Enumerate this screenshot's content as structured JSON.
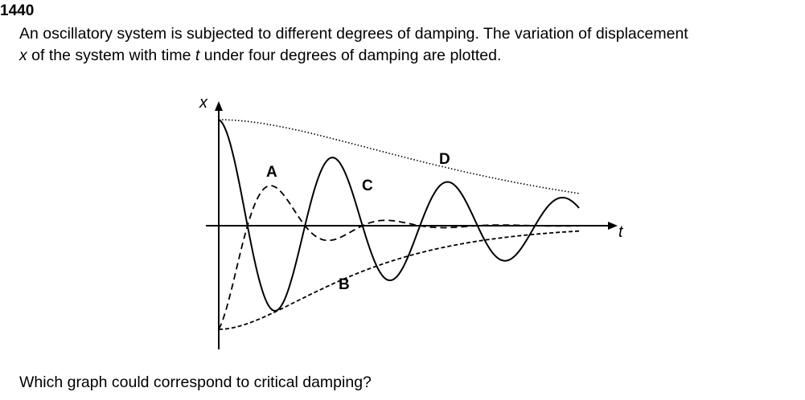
{
  "question": {
    "number": "1440",
    "stem_line1": "An oscillatory system is subjected to different degrees of damping. The variation of displacement",
    "stem_line2_var_x": "x",
    "stem_line2_a": " of the system with time ",
    "stem_line2_var_t": "t",
    "stem_line2_b": " under four degrees of damping are plotted.",
    "prompt": "Which graph could correspond to critical damping?"
  },
  "figure": {
    "y_axis_label": "x",
    "x_axis_label": "t",
    "curves": [
      {
        "label": "A",
        "style": "dashed",
        "behaviour": "heavily damped oscillation starting at negative maximum"
      },
      {
        "label": "B",
        "style": "dashed",
        "behaviour": "returns to zero from negative maximum without oscillating"
      },
      {
        "label": "C",
        "style": "solid",
        "behaviour": "lightly damped oscillation starting at positive maximum"
      },
      {
        "label": "D",
        "style": "dotted",
        "behaviour": "slow decay from positive maximum without oscillating"
      }
    ],
    "line_color": "#000000"
  }
}
